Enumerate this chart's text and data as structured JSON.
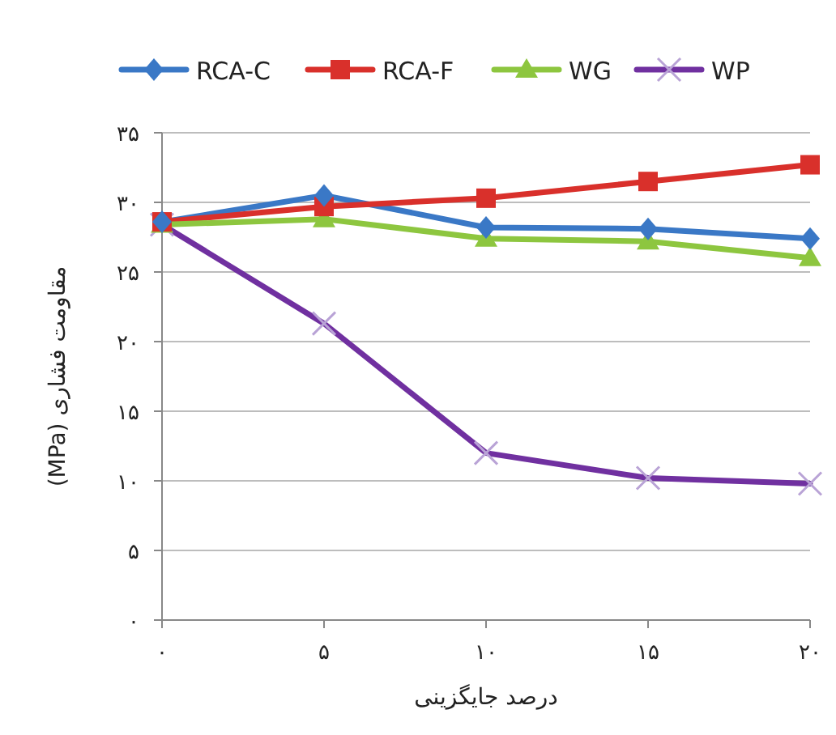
{
  "chart_data": {
    "type": "line",
    "xlabel": "درصد جایگزینی",
    "ylabel": "مقاومت فشاری (MPa)",
    "x": [
      0,
      5,
      10,
      15,
      20
    ],
    "xlim": [
      0,
      20
    ],
    "xticks": [
      {
        "value": 0,
        "label": "۰"
      },
      {
        "value": 5,
        "label": "۵"
      },
      {
        "value": 10,
        "label": "۱۰"
      },
      {
        "value": 15,
        "label": "۱۵"
      },
      {
        "value": 20,
        "label": "۲۰"
      }
    ],
    "ylim": [
      0,
      35
    ],
    "yticks": [
      {
        "value": 0,
        "label": "۰"
      },
      {
        "value": 5,
        "label": "۵"
      },
      {
        "value": 10,
        "label": "۱۰"
      },
      {
        "value": 15,
        "label": "۱۵"
      },
      {
        "value": 20,
        "label": "۲۰"
      },
      {
        "value": 25,
        "label": "۲۵"
      },
      {
        "value": 30,
        "label": "۳۰"
      },
      {
        "value": 35,
        "label": "۳۵"
      }
    ],
    "grid": "y",
    "legend": "top",
    "line_style": "solid",
    "series": [
      {
        "name": "RCA-C",
        "color": "#3a78c6",
        "marker": "diamond",
        "values": [
          28.6,
          30.5,
          28.2,
          28.1,
          27.4
        ]
      },
      {
        "name": "RCA-F",
        "color": "#d9302b",
        "marker": "square",
        "values": [
          28.6,
          29.7,
          30.3,
          31.5,
          32.7
        ]
      },
      {
        "name": "WG",
        "color": "#8dc63f",
        "marker": "triangle",
        "values": [
          28.4,
          28.8,
          27.4,
          27.2,
          26.0
        ]
      },
      {
        "name": "WP",
        "color": "#7030a0",
        "marker": "cross",
        "values": [
          28.4,
          21.3,
          12.0,
          10.2,
          9.8
        ]
      }
    ]
  }
}
